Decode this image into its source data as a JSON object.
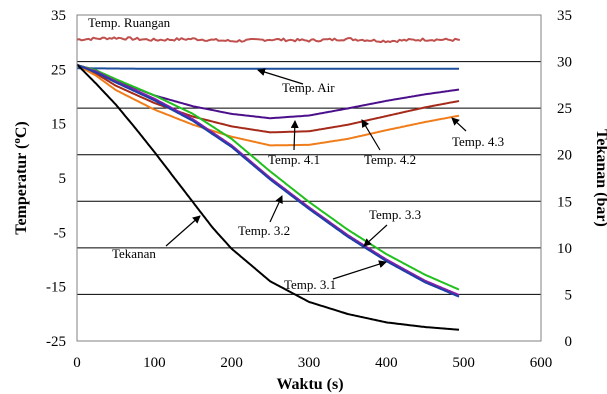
{
  "chart_data": {
    "type": "line",
    "xlabel": "Waktu (s)",
    "ylabel_left": "Temperatur (°C)",
    "ylabel_left_base": "Temperatur (",
    "ylabel_left_sup": "o",
    "ylabel_left_tail": "C)",
    "ylabel_right": "Tekanan (bar)",
    "xlim": [
      0,
      600
    ],
    "ylim_left": [
      -25,
      35
    ],
    "ylim_right": [
      0,
      35
    ],
    "x_ticks": [
      "0",
      "100",
      "200",
      "300",
      "400",
      "500",
      "600"
    ],
    "y_left_ticks": [
      "-25",
      "-15",
      "-5",
      "5",
      "15",
      "25",
      "35"
    ],
    "y_right_ticks": [
      "0",
      "5",
      "10",
      "15",
      "20",
      "25",
      "30",
      "35"
    ],
    "grid": "horizontal at right-axis 5 bar intervals",
    "legend": "none (inline annotations with arrows)",
    "series": [
      {
        "name": "Temp. Ruangan",
        "axis": "left",
        "color": "#c0504d",
        "x": [
          0,
          50,
          100,
          150,
          200,
          250,
          300,
          350,
          400,
          450,
          495
        ],
        "y": [
          30.5,
          30.8,
          30.4,
          30.6,
          30.2,
          30.5,
          30.3,
          30.6,
          30.2,
          30.5,
          30.4
        ]
      },
      {
        "name": "Temp. Air",
        "axis": "left",
        "color": "#1f4e9c",
        "x": [
          0,
          100,
          200,
          300,
          400,
          495
        ],
        "y": [
          25.2,
          25.1,
          25.1,
          25.1,
          25.1,
          25.1
        ]
      },
      {
        "name": "Temp. 4.3",
        "axis": "left",
        "color": "#4b0f8c",
        "x": [
          0,
          25,
          50,
          100,
          150,
          200,
          250,
          300,
          350,
          400,
          450,
          495
        ],
        "y": [
          25.8,
          24.8,
          23.0,
          20.2,
          18.2,
          16.8,
          16.0,
          16.5,
          17.8,
          19.2,
          20.4,
          21.3
        ]
      },
      {
        "name": "Temp. 4.1",
        "axis": "left",
        "color": "#a52a1a",
        "x": [
          0,
          25,
          50,
          100,
          150,
          200,
          250,
          300,
          350,
          400,
          450,
          495
        ],
        "y": [
          25.8,
          24.2,
          22.0,
          18.8,
          16.3,
          14.5,
          13.4,
          13.6,
          14.8,
          16.4,
          18.0,
          19.2
        ]
      },
      {
        "name": "Temp. 4.2",
        "axis": "left",
        "color": "#f07d1a",
        "x": [
          0,
          25,
          50,
          100,
          150,
          200,
          250,
          300,
          350,
          400,
          450,
          495
        ],
        "y": [
          25.8,
          23.8,
          21.2,
          17.6,
          14.8,
          12.6,
          11.0,
          11.1,
          12.2,
          13.8,
          15.3,
          16.5
        ]
      },
      {
        "name": "Temp. 3.3",
        "axis": "left",
        "color": "#22c01e",
        "x": [
          0,
          25,
          50,
          100,
          150,
          200,
          250,
          300,
          350,
          400,
          450,
          495
        ],
        "y": [
          25.8,
          24.8,
          23.2,
          20.2,
          16.8,
          12.2,
          6.2,
          0.6,
          -4.5,
          -9.0,
          -12.8,
          -15.6
        ]
      },
      {
        "name": "Temp. 3.2",
        "axis": "left",
        "color": "#8a1fa8",
        "x": [
          0,
          25,
          50,
          100,
          150,
          200,
          250,
          300,
          350,
          400,
          450,
          495
        ],
        "y": [
          25.8,
          24.6,
          22.8,
          19.6,
          15.8,
          11.0,
          5.0,
          -0.4,
          -5.5,
          -10.0,
          -13.9,
          -16.6
        ]
      },
      {
        "name": "Temp. 3.1",
        "axis": "left",
        "color": "#1f3fa8",
        "x": [
          0,
          25,
          50,
          100,
          150,
          200,
          250,
          300,
          350,
          400,
          450,
          495
        ],
        "y": [
          25.8,
          24.4,
          22.6,
          19.3,
          15.5,
          10.7,
          4.7,
          -0.7,
          -5.8,
          -10.3,
          -14.2,
          -16.9
        ]
      },
      {
        "name": "Tekanan",
        "axis": "right",
        "color": "#000000",
        "x": [
          0,
          25,
          50,
          75,
          100,
          125,
          150,
          175,
          200,
          250,
          300,
          350,
          400,
          450,
          495
        ],
        "y": [
          29.7,
          27.6,
          25.4,
          22.9,
          20.3,
          17.6,
          14.9,
          12.2,
          9.9,
          6.4,
          4.2,
          2.9,
          2.0,
          1.5,
          1.2
        ]
      }
    ],
    "annotations": [
      {
        "text": "Temp. Ruangan",
        "target_series": "Temp. Ruangan",
        "arrow": false
      },
      {
        "text": "Temp. Air",
        "target_series": "Temp. Air",
        "arrow": true
      },
      {
        "text": "Temp. 4.1",
        "target_series": "Temp. 4.1",
        "arrow": true
      },
      {
        "text": "Temp. 4.2",
        "target_series": "Temp. 4.2",
        "arrow": true
      },
      {
        "text": "Temp. 4.3",
        "target_series": "Temp. 4.3",
        "arrow": true
      },
      {
        "text": "Tekanan",
        "target_series": "Tekanan",
        "arrow": true
      },
      {
        "text": "Temp. 3.2",
        "target_series": "Temp. 3.2",
        "arrow": true
      },
      {
        "text": "Temp. 3.3",
        "target_series": "Temp. 3.3",
        "arrow": true
      },
      {
        "text": "Temp. 3.1",
        "target_series": "Temp. 3.1",
        "arrow": true
      }
    ]
  }
}
